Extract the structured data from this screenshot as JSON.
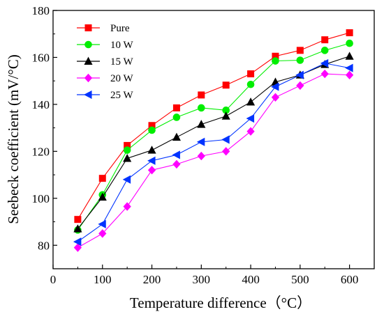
{
  "chart_data": {
    "type": "line",
    "title": "",
    "xlabel": "Temperature difference（°C）",
    "ylabel": "Seebeck coefficient (mV/°C)",
    "xlim": [
      0,
      650
    ],
    "ylim": [
      70,
      180
    ],
    "xticks": [
      0,
      100,
      200,
      300,
      400,
      500,
      600
    ],
    "yticks": [
      80,
      100,
      120,
      140,
      160,
      180
    ],
    "grid": false,
    "legend": "top-left",
    "x": [
      50,
      100,
      150,
      200,
      250,
      300,
      350,
      400,
      450,
      500,
      550,
      600
    ],
    "series": [
      {
        "name": "Pure",
        "color": "#ff0000",
        "marker": "square",
        "values": [
          91,
          108.5,
          122.5,
          131,
          138.5,
          144,
          148.2,
          153,
          160.5,
          163,
          167.5,
          170.5
        ]
      },
      {
        "name": "10 W",
        "color": "#00ee00",
        "marker": "circle",
        "values": [
          86.5,
          101.5,
          120.5,
          129,
          134.5,
          138.5,
          137.5,
          148.5,
          158.5,
          158.8,
          163,
          166
        ]
      },
      {
        "name": "15 W",
        "color": "#000000",
        "marker": "triangle-up",
        "values": [
          87,
          100.5,
          117,
          120.5,
          126,
          131.5,
          135,
          141,
          149.5,
          152.5,
          157,
          160.5
        ]
      },
      {
        "name": "20 W",
        "color": "#ff00ff",
        "marker": "diamond",
        "values": [
          79,
          85,
          96.5,
          112,
          114.5,
          118,
          120,
          128.5,
          143,
          148,
          153,
          152.5
        ]
      },
      {
        "name": "25 W",
        "color": "#0033ff",
        "marker": "triangle-left",
        "values": [
          81.5,
          89,
          108,
          116,
          118.5,
          124,
          125,
          134,
          147.5,
          152.5,
          157.5,
          155.5
        ]
      }
    ]
  }
}
